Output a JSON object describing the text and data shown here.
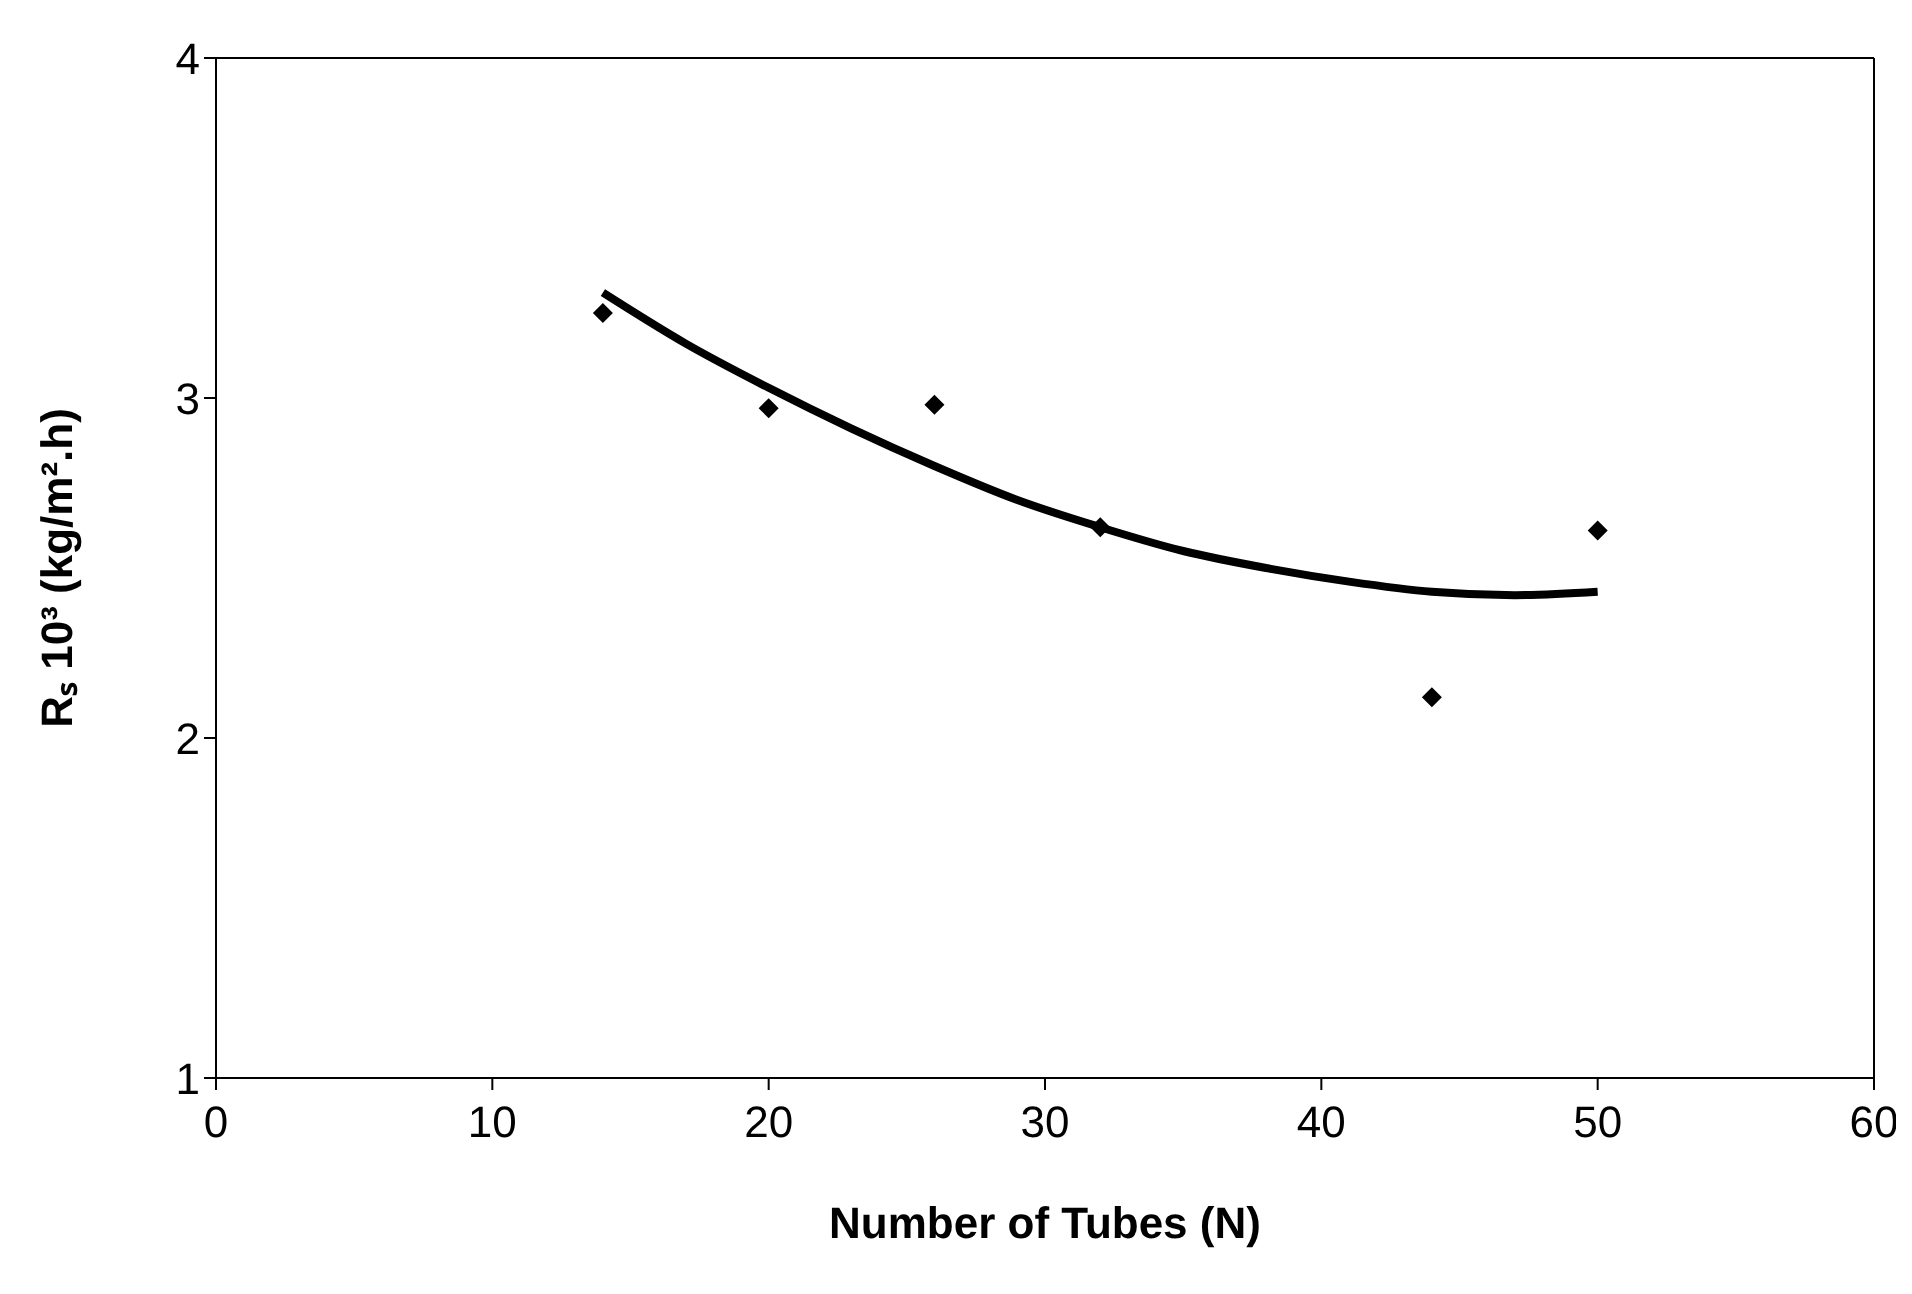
{
  "chart_data": {
    "type": "scatter",
    "xlabel": "Number of Tubes (N)",
    "ylabel": "Rₛ 10³ (kg/m².h)",
    "xlim": [
      0,
      60
    ],
    "xticks": [
      0,
      10,
      20,
      30,
      40,
      50,
      60
    ],
    "ylim": [
      1,
      4
    ],
    "yticks": [
      1,
      2,
      3,
      4
    ],
    "marker": "diamond",
    "series": [
      {
        "type": "scatter",
        "color": "#000000",
        "x": [
          14,
          20,
          26,
          32,
          44,
          50
        ],
        "values": [
          3.25,
          2.97,
          2.98,
          2.62,
          2.12,
          2.61
        ]
      },
      {
        "type": "line",
        "color": "#000000",
        "marker": "none",
        "line_style": "solid",
        "x": [
          14,
          17,
          20,
          23,
          26,
          29,
          32,
          35,
          38,
          41,
          44,
          47,
          50
        ],
        "values": [
          3.31,
          3.16,
          3.03,
          2.91,
          2.8,
          2.7,
          2.62,
          2.55,
          2.5,
          2.46,
          2.43,
          2.42,
          2.43
        ]
      }
    ]
  }
}
